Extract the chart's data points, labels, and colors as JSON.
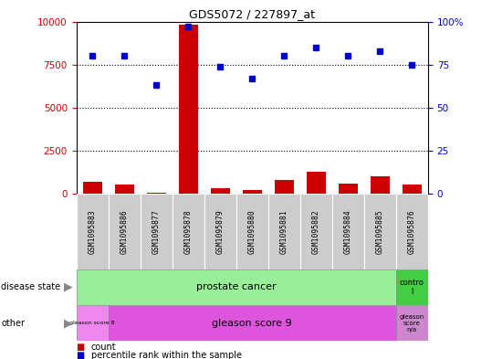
{
  "title": "GDS5072 / 227897_at",
  "samples": [
    "GSM1095883",
    "GSM1095886",
    "GSM1095877",
    "GSM1095878",
    "GSM1095879",
    "GSM1095880",
    "GSM1095881",
    "GSM1095882",
    "GSM1095884",
    "GSM1095885",
    "GSM1095876"
  ],
  "count_values": [
    700,
    550,
    80,
    9800,
    350,
    250,
    800,
    1300,
    600,
    1000,
    550
  ],
  "percentile_values": [
    80,
    80,
    63,
    97,
    74,
    67,
    80,
    85,
    80,
    83,
    75
  ],
  "ylim_left": [
    0,
    10000
  ],
  "ylim_right": [
    0,
    100
  ],
  "yticks_left": [
    0,
    2500,
    5000,
    7500,
    10000
  ],
  "yticks_right": [
    0,
    25,
    50,
    75,
    100
  ],
  "bar_color": "#cc0000",
  "dot_color": "#0000cc",
  "prostate_color": "#99ee99",
  "control_color": "#44cc44",
  "gs8_color": "#ee88ee",
  "gs9_color": "#dd55dd",
  "gsna_color": "#cc88cc",
  "axis_label_color_left": "#cc0000",
  "axis_label_color_right": "#0000cc",
  "tick_label_bg": "#cccccc",
  "legend_items": [
    {
      "label": "count",
      "color": "#cc0000"
    },
    {
      "label": "percentile rank within the sample",
      "color": "#0000cc"
    }
  ],
  "fig_width": 5.39,
  "fig_height": 3.93,
  "dpi": 100
}
